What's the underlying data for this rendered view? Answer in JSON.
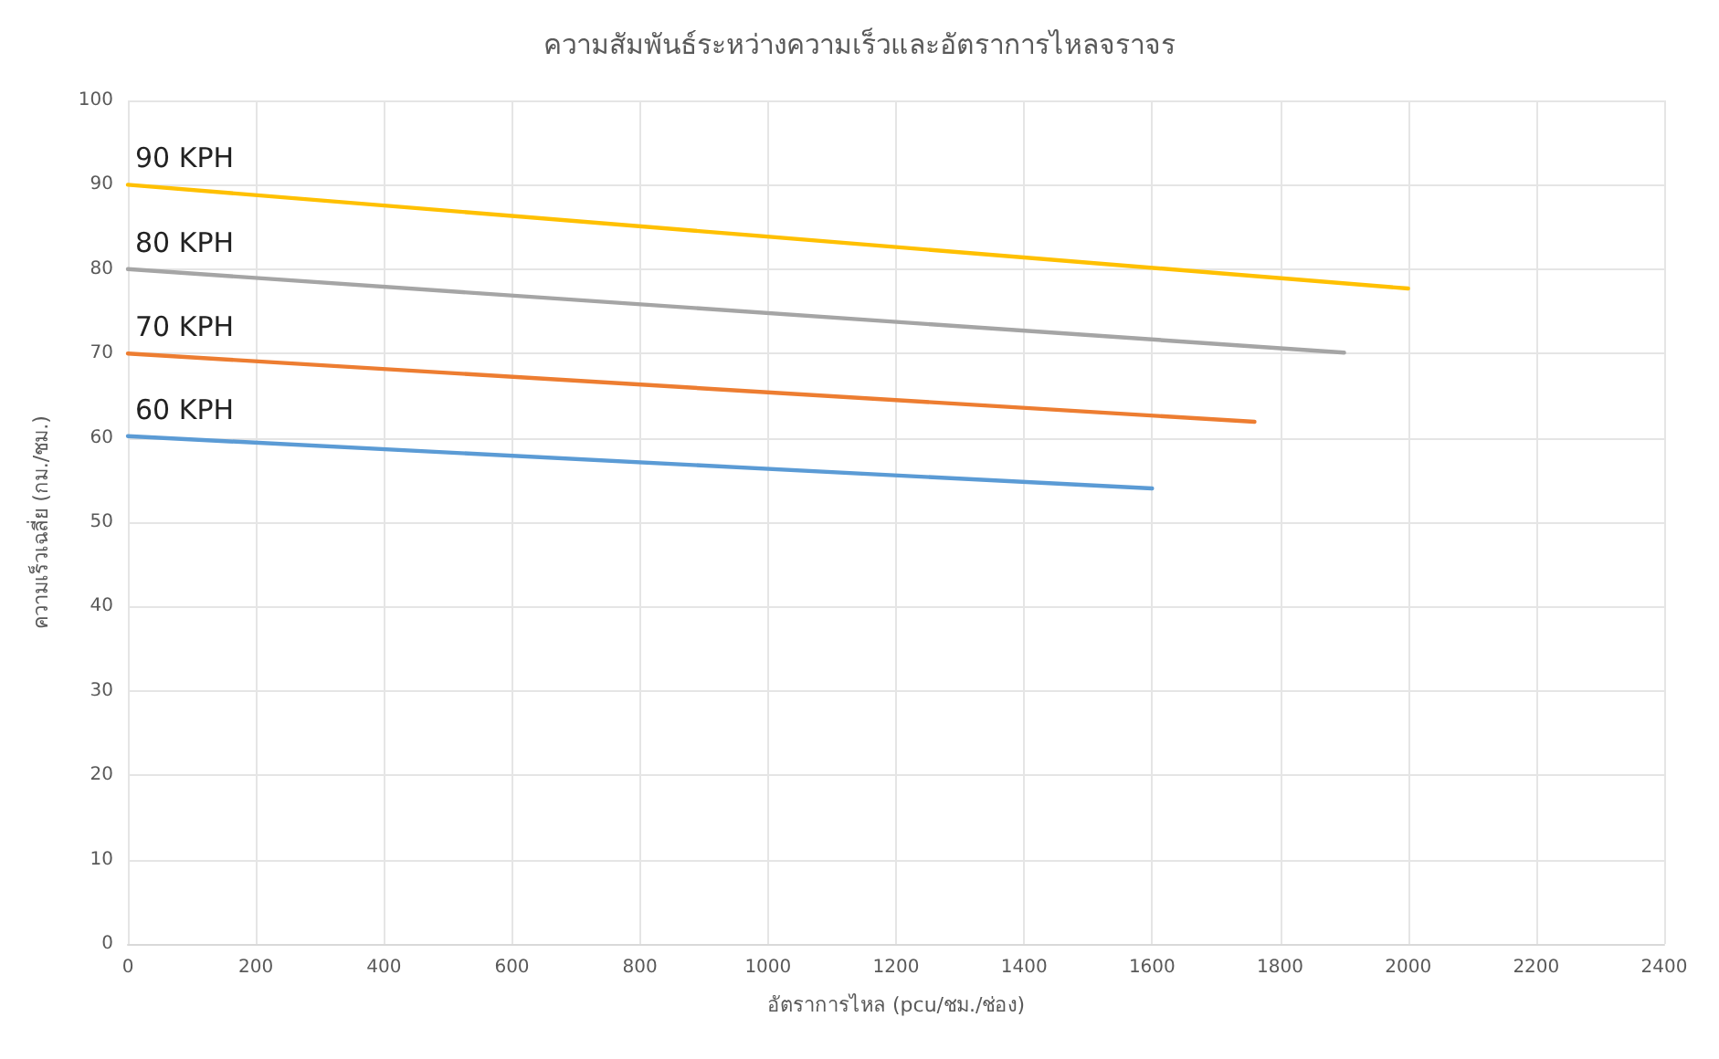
{
  "chart_data": {
    "type": "line",
    "title": "ความสัมพันธ์ระหว่างความเร็วและอัตราการไหลจราจร",
    "xlabel": "อัตราการไหล (pcu/ชม./ช่อง)",
    "ylabel": "ความเร็วเฉลี่ย (กม./ชม.)",
    "xlim": [
      0,
      2400
    ],
    "xticks": [
      0,
      200,
      400,
      600,
      800,
      1000,
      1200,
      1400,
      1600,
      1800,
      2000,
      2200,
      2400
    ],
    "ylim": [
      0,
      100
    ],
    "yticks": [
      0,
      10,
      20,
      30,
      40,
      50,
      60,
      70,
      80,
      90,
      100
    ],
    "grid": true,
    "legend": false,
    "marker": "none",
    "line_style": "solid",
    "series": [
      {
        "name": "90 KPH",
        "color": "#ffc000",
        "x": [
          0,
          2000
        ],
        "values": [
          90,
          77.7
        ]
      },
      {
        "name": "80 KPH",
        "color": "#a5a5a5",
        "x": [
          0,
          1900
        ],
        "values": [
          80,
          70.1
        ]
      },
      {
        "name": "70 KPH",
        "color": "#ed7d31",
        "x": [
          0,
          1760
        ],
        "values": [
          70,
          61.9
        ]
      },
      {
        "name": "60 KPH",
        "color": "#5b9bd5",
        "x": [
          0,
          1600
        ],
        "values": [
          60.2,
          54
        ]
      }
    ]
  }
}
